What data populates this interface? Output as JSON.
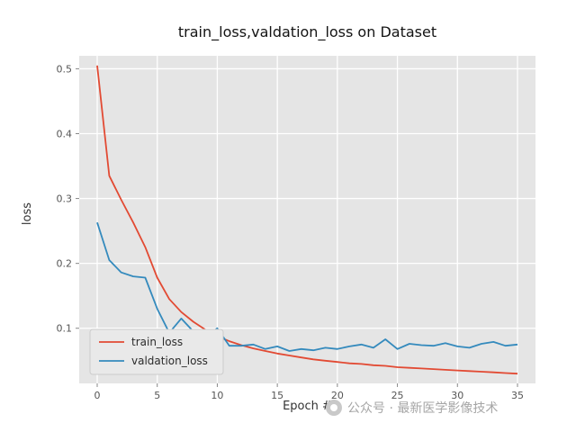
{
  "watermark": {
    "text": "公众号 · 最新医学影像技术"
  },
  "chart_data": {
    "type": "line",
    "title": "train_loss,valdation_loss on Dataset",
    "xlabel": "Epoch #",
    "ylabel": "loss",
    "xlim": [
      -1.5,
      36.5
    ],
    "ylim": [
      0.015,
      0.52
    ],
    "xticks": [
      0,
      5,
      10,
      15,
      20,
      25,
      30,
      35
    ],
    "yticks": [
      0.1,
      0.2,
      0.3,
      0.4,
      0.5
    ],
    "grid": true,
    "legend_position": "lower-left",
    "plot_bg_color": "#e5e5e5",
    "grid_color": "#ffffff",
    "tick_label_color": "#555555",
    "x": [
      0,
      1,
      2,
      3,
      4,
      5,
      6,
      7,
      8,
      9,
      10,
      11,
      12,
      13,
      14,
      15,
      16,
      17,
      18,
      19,
      20,
      21,
      22,
      23,
      24,
      25,
      26,
      27,
      28,
      29,
      30,
      31,
      32,
      33,
      34,
      35
    ],
    "series": [
      {
        "name": "train_loss",
        "color": "#E24A33",
        "values": [
          0.505,
          0.335,
          0.298,
          0.263,
          0.225,
          0.178,
          0.145,
          0.125,
          0.11,
          0.098,
          0.088,
          0.08,
          0.074,
          0.069,
          0.065,
          0.061,
          0.058,
          0.055,
          0.052,
          0.05,
          0.048,
          0.046,
          0.045,
          0.043,
          0.042,
          0.04,
          0.039,
          0.038,
          0.037,
          0.036,
          0.035,
          0.034,
          0.033,
          0.032,
          0.031,
          0.03
        ]
      },
      {
        "name": "valdation_loss",
        "color": "#348ABD",
        "values": [
          0.263,
          0.205,
          0.186,
          0.18,
          0.178,
          0.13,
          0.093,
          0.115,
          0.095,
          0.085,
          0.1,
          0.073,
          0.073,
          0.075,
          0.068,
          0.072,
          0.065,
          0.068,
          0.066,
          0.07,
          0.068,
          0.072,
          0.075,
          0.07,
          0.083,
          0.068,
          0.076,
          0.074,
          0.073,
          0.077,
          0.072,
          0.07,
          0.076,
          0.079,
          0.073,
          0.075
        ]
      }
    ]
  }
}
